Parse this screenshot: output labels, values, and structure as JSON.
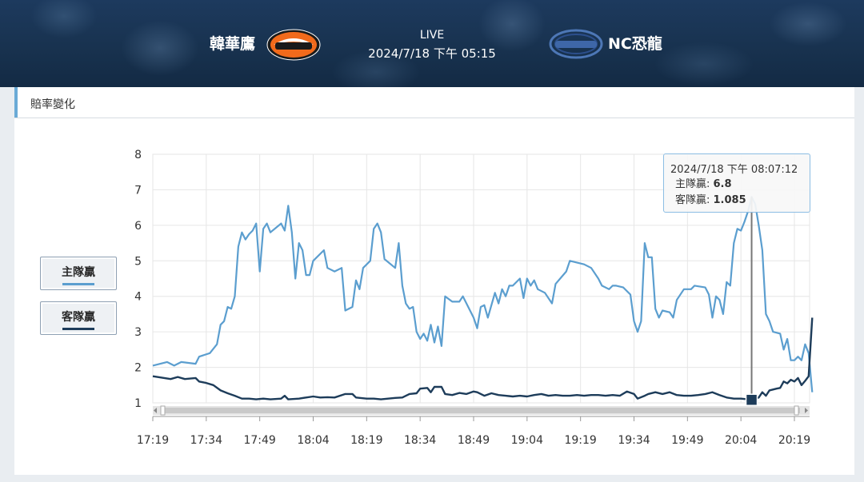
{
  "header": {
    "home_team": "韓華鷹",
    "away_team": "NC恐龍",
    "status": "LIVE",
    "datetime": "2024/7/18 下午 05:15",
    "home_logo_icon": "eagles-logo-icon",
    "away_logo_icon": "dinos-logo-icon"
  },
  "panel": {
    "title": "賠率變化"
  },
  "legend": [
    {
      "label": "主隊贏",
      "color": "#5b9ecf"
    },
    {
      "label": "客隊贏",
      "color": "#1d3c5a"
    }
  ],
  "tooltip": {
    "title": "2024/7/18 下午 08:07:12",
    "home_label": "主隊贏: ",
    "home_value": "6.8",
    "away_label": "客隊贏: ",
    "away_value": "1.085"
  },
  "chart_data": {
    "type": "line",
    "xlabel": "",
    "ylabel": "",
    "x_ticks": [
      "17:19",
      "17:34",
      "17:49",
      "18:04",
      "18:19",
      "18:34",
      "18:49",
      "19:04",
      "19:19",
      "19:34",
      "19:49",
      "20:04",
      "20:19"
    ],
    "xlim": [
      "17:19",
      "20:24"
    ],
    "ylim": [
      1,
      8
    ],
    "y_ticks": [
      1,
      2,
      3,
      4,
      5,
      6,
      7,
      8
    ],
    "grid": true,
    "series": [
      {
        "name": "主隊贏",
        "color": "#5b9ecf",
        "points": [
          [
            "17:19",
            2.05
          ],
          [
            "17:23",
            2.15
          ],
          [
            "17:25",
            2.05
          ],
          [
            "17:27",
            2.15
          ],
          [
            "17:31",
            2.1
          ],
          [
            "17:32",
            2.3
          ],
          [
            "17:35",
            2.4
          ],
          [
            "17:37",
            2.65
          ],
          [
            "17:38",
            3.2
          ],
          [
            "17:39",
            3.3
          ],
          [
            "17:40",
            3.7
          ],
          [
            "17:41",
            3.65
          ],
          [
            "17:42",
            4.0
          ],
          [
            "17:43",
            5.4
          ],
          [
            "17:44",
            5.8
          ],
          [
            "17:45",
            5.6
          ],
          [
            "17:46",
            5.75
          ],
          [
            "17:47",
            5.85
          ],
          [
            "17:48",
            6.05
          ],
          [
            "17:49",
            4.7
          ],
          [
            "17:50",
            5.9
          ],
          [
            "17:51",
            6.05
          ],
          [
            "17:52",
            5.8
          ],
          [
            "17:55",
            6.05
          ],
          [
            "17:56",
            5.85
          ],
          [
            "17:57",
            6.55
          ],
          [
            "17:58",
            5.8
          ],
          [
            "17:59",
            4.5
          ],
          [
            "18:00",
            5.5
          ],
          [
            "18:01",
            5.3
          ],
          [
            "18:02",
            4.6
          ],
          [
            "18:03",
            4.6
          ],
          [
            "18:04",
            5.0
          ],
          [
            "18:07",
            5.3
          ],
          [
            "18:08",
            4.8
          ],
          [
            "18:10",
            4.7
          ],
          [
            "18:12",
            4.8
          ],
          [
            "18:13",
            3.6
          ],
          [
            "18:15",
            3.7
          ],
          [
            "18:16",
            4.45
          ],
          [
            "18:17",
            4.2
          ],
          [
            "18:18",
            4.8
          ],
          [
            "18:20",
            5.0
          ],
          [
            "18:21",
            5.9
          ],
          [
            "18:22",
            6.05
          ],
          [
            "18:23",
            5.8
          ],
          [
            "18:24",
            5.05
          ],
          [
            "18:27",
            4.8
          ],
          [
            "18:28",
            5.5
          ],
          [
            "18:29",
            4.3
          ],
          [
            "18:30",
            3.8
          ],
          [
            "18:31",
            3.65
          ],
          [
            "18:32",
            3.7
          ],
          [
            "18:33",
            3.0
          ],
          [
            "18:34",
            2.8
          ],
          [
            "18:35",
            2.95
          ],
          [
            "18:36",
            2.75
          ],
          [
            "18:37",
            3.2
          ],
          [
            "18:38",
            2.7
          ],
          [
            "18:39",
            3.15
          ],
          [
            "18:40",
            2.6
          ],
          [
            "18:41",
            4.0
          ],
          [
            "18:43",
            3.85
          ],
          [
            "18:45",
            3.85
          ],
          [
            "18:46",
            4.0
          ],
          [
            "18:49",
            3.4
          ],
          [
            "18:50",
            3.1
          ],
          [
            "18:51",
            3.7
          ],
          [
            "18:52",
            3.75
          ],
          [
            "18:53",
            3.4
          ],
          [
            "18:55",
            4.1
          ],
          [
            "18:56",
            3.8
          ],
          [
            "18:57",
            4.2
          ],
          [
            "18:58",
            4.0
          ],
          [
            "18:59",
            4.3
          ],
          [
            "19:00",
            4.3
          ],
          [
            "19:02",
            4.5
          ],
          [
            "19:03",
            3.95
          ],
          [
            "19:04",
            4.5
          ],
          [
            "19:05",
            4.3
          ],
          [
            "19:06",
            4.45
          ],
          [
            "19:07",
            4.2
          ],
          [
            "19:09",
            4.1
          ],
          [
            "19:11",
            3.8
          ],
          [
            "19:12",
            4.35
          ],
          [
            "19:15",
            4.7
          ],
          [
            "19:16",
            5.0
          ],
          [
            "19:20",
            4.9
          ],
          [
            "19:22",
            4.8
          ],
          [
            "19:24",
            4.5
          ],
          [
            "19:25",
            4.3
          ],
          [
            "19:27",
            4.2
          ],
          [
            "19:28",
            4.3
          ],
          [
            "19:29",
            4.3
          ],
          [
            "19:31",
            4.25
          ],
          [
            "19:33",
            4.05
          ],
          [
            "19:34",
            3.3
          ],
          [
            "19:35",
            3.0
          ],
          [
            "19:36",
            3.3
          ],
          [
            "19:37",
            5.5
          ],
          [
            "19:38",
            5.1
          ],
          [
            "19:39",
            5.1
          ],
          [
            "19:40",
            3.65
          ],
          [
            "19:41",
            3.4
          ],
          [
            "19:42",
            3.6
          ],
          [
            "19:44",
            3.55
          ],
          [
            "19:45",
            3.4
          ],
          [
            "19:46",
            3.9
          ],
          [
            "19:48",
            4.2
          ],
          [
            "19:50",
            4.2
          ],
          [
            "19:51",
            4.3
          ],
          [
            "19:54",
            4.25
          ],
          [
            "19:55",
            4.05
          ],
          [
            "19:56",
            3.4
          ],
          [
            "19:57",
            4.0
          ],
          [
            "19:58",
            3.9
          ],
          [
            "19:59",
            3.5
          ],
          [
            "20:00",
            4.4
          ],
          [
            "20:01",
            4.3
          ],
          [
            "20:02",
            5.5
          ],
          [
            "20:03",
            5.9
          ],
          [
            "20:04",
            5.85
          ],
          [
            "20:05",
            6.1
          ],
          [
            "20:06",
            6.4
          ],
          [
            "20:07",
            6.8
          ],
          [
            "20:08",
            6.6
          ],
          [
            "20:09",
            6.0
          ],
          [
            "20:10",
            5.3
          ],
          [
            "20:11",
            3.5
          ],
          [
            "20:12",
            3.3
          ],
          [
            "20:13",
            3.0
          ],
          [
            "20:15",
            2.95
          ],
          [
            "20:16",
            2.5
          ],
          [
            "20:17",
            2.8
          ],
          [
            "20:18",
            2.2
          ],
          [
            "20:19",
            2.2
          ],
          [
            "20:20",
            2.3
          ],
          [
            "20:21",
            2.2
          ],
          [
            "20:22",
            2.65
          ],
          [
            "20:23",
            2.4
          ],
          [
            "20:24",
            1.3
          ]
        ]
      },
      {
        "name": "客隊贏",
        "color": "#1d3c5a",
        "points": [
          [
            "17:19",
            1.75
          ],
          [
            "17:24",
            1.67
          ],
          [
            "17:26",
            1.73
          ],
          [
            "17:28",
            1.67
          ],
          [
            "17:31",
            1.7
          ],
          [
            "17:32",
            1.6
          ],
          [
            "17:34",
            1.56
          ],
          [
            "17:36",
            1.5
          ],
          [
            "17:38",
            1.35
          ],
          [
            "17:40",
            1.27
          ],
          [
            "17:42",
            1.2
          ],
          [
            "17:44",
            1.12
          ],
          [
            "17:46",
            1.12
          ],
          [
            "17:48",
            1.1
          ],
          [
            "17:50",
            1.12
          ],
          [
            "17:52",
            1.1
          ],
          [
            "17:55",
            1.12
          ],
          [
            "17:56",
            1.2
          ],
          [
            "17:57",
            1.1
          ],
          [
            "18:00",
            1.12
          ],
          [
            "18:02",
            1.15
          ],
          [
            "18:04",
            1.18
          ],
          [
            "18:06",
            1.15
          ],
          [
            "18:08",
            1.16
          ],
          [
            "18:10",
            1.15
          ],
          [
            "18:13",
            1.25
          ],
          [
            "18:15",
            1.25
          ],
          [
            "18:16",
            1.15
          ],
          [
            "18:19",
            1.12
          ],
          [
            "18:21",
            1.12
          ],
          [
            "18:23",
            1.1
          ],
          [
            "18:27",
            1.14
          ],
          [
            "18:29",
            1.15
          ],
          [
            "18:31",
            1.25
          ],
          [
            "18:33",
            1.27
          ],
          [
            "18:34",
            1.4
          ],
          [
            "18:36",
            1.42
          ],
          [
            "18:37",
            1.3
          ],
          [
            "18:38",
            1.45
          ],
          [
            "18:40",
            1.45
          ],
          [
            "18:41",
            1.25
          ],
          [
            "18:43",
            1.22
          ],
          [
            "18:45",
            1.28
          ],
          [
            "18:47",
            1.25
          ],
          [
            "18:49",
            1.32
          ],
          [
            "18:50",
            1.3
          ],
          [
            "18:52",
            1.2
          ],
          [
            "18:54",
            1.27
          ],
          [
            "18:56",
            1.22
          ],
          [
            "18:58",
            1.2
          ],
          [
            "19:00",
            1.18
          ],
          [
            "19:02",
            1.2
          ],
          [
            "19:04",
            1.18
          ],
          [
            "19:06",
            1.22
          ],
          [
            "19:08",
            1.25
          ],
          [
            "19:10",
            1.2
          ],
          [
            "19:12",
            1.22
          ],
          [
            "19:14",
            1.2
          ],
          [
            "19:16",
            1.2
          ],
          [
            "19:18",
            1.22
          ],
          [
            "19:20",
            1.2
          ],
          [
            "19:22",
            1.22
          ],
          [
            "19:24",
            1.22
          ],
          [
            "19:26",
            1.2
          ],
          [
            "19:28",
            1.22
          ],
          [
            "19:30",
            1.2
          ],
          [
            "19:32",
            1.32
          ],
          [
            "19:34",
            1.25
          ],
          [
            "19:35",
            1.12
          ],
          [
            "19:37",
            1.2
          ],
          [
            "19:38",
            1.25
          ],
          [
            "19:40",
            1.3
          ],
          [
            "19:42",
            1.25
          ],
          [
            "19:44",
            1.3
          ],
          [
            "19:46",
            1.22
          ],
          [
            "19:48",
            1.2
          ],
          [
            "19:50",
            1.2
          ],
          [
            "19:52",
            1.22
          ],
          [
            "19:54",
            1.25
          ],
          [
            "19:56",
            1.3
          ],
          [
            "19:58",
            1.22
          ],
          [
            "20:00",
            1.15
          ],
          [
            "20:02",
            1.12
          ],
          [
            "20:04",
            1.12
          ],
          [
            "20:06",
            1.1
          ],
          [
            "20:07",
            1.085
          ],
          [
            "20:09",
            1.15
          ],
          [
            "20:10",
            1.3
          ],
          [
            "20:11",
            1.2
          ],
          [
            "20:12",
            1.35
          ],
          [
            "20:14",
            1.4
          ],
          [
            "20:15",
            1.42
          ],
          [
            "20:16",
            1.6
          ],
          [
            "20:17",
            1.55
          ],
          [
            "20:18",
            1.65
          ],
          [
            "20:19",
            1.6
          ],
          [
            "20:20",
            1.7
          ],
          [
            "20:21",
            1.5
          ],
          [
            "20:22",
            1.62
          ],
          [
            "20:23",
            1.75
          ],
          [
            "20:24",
            3.4
          ]
        ]
      }
    ],
    "highlight_x": "20:07"
  }
}
